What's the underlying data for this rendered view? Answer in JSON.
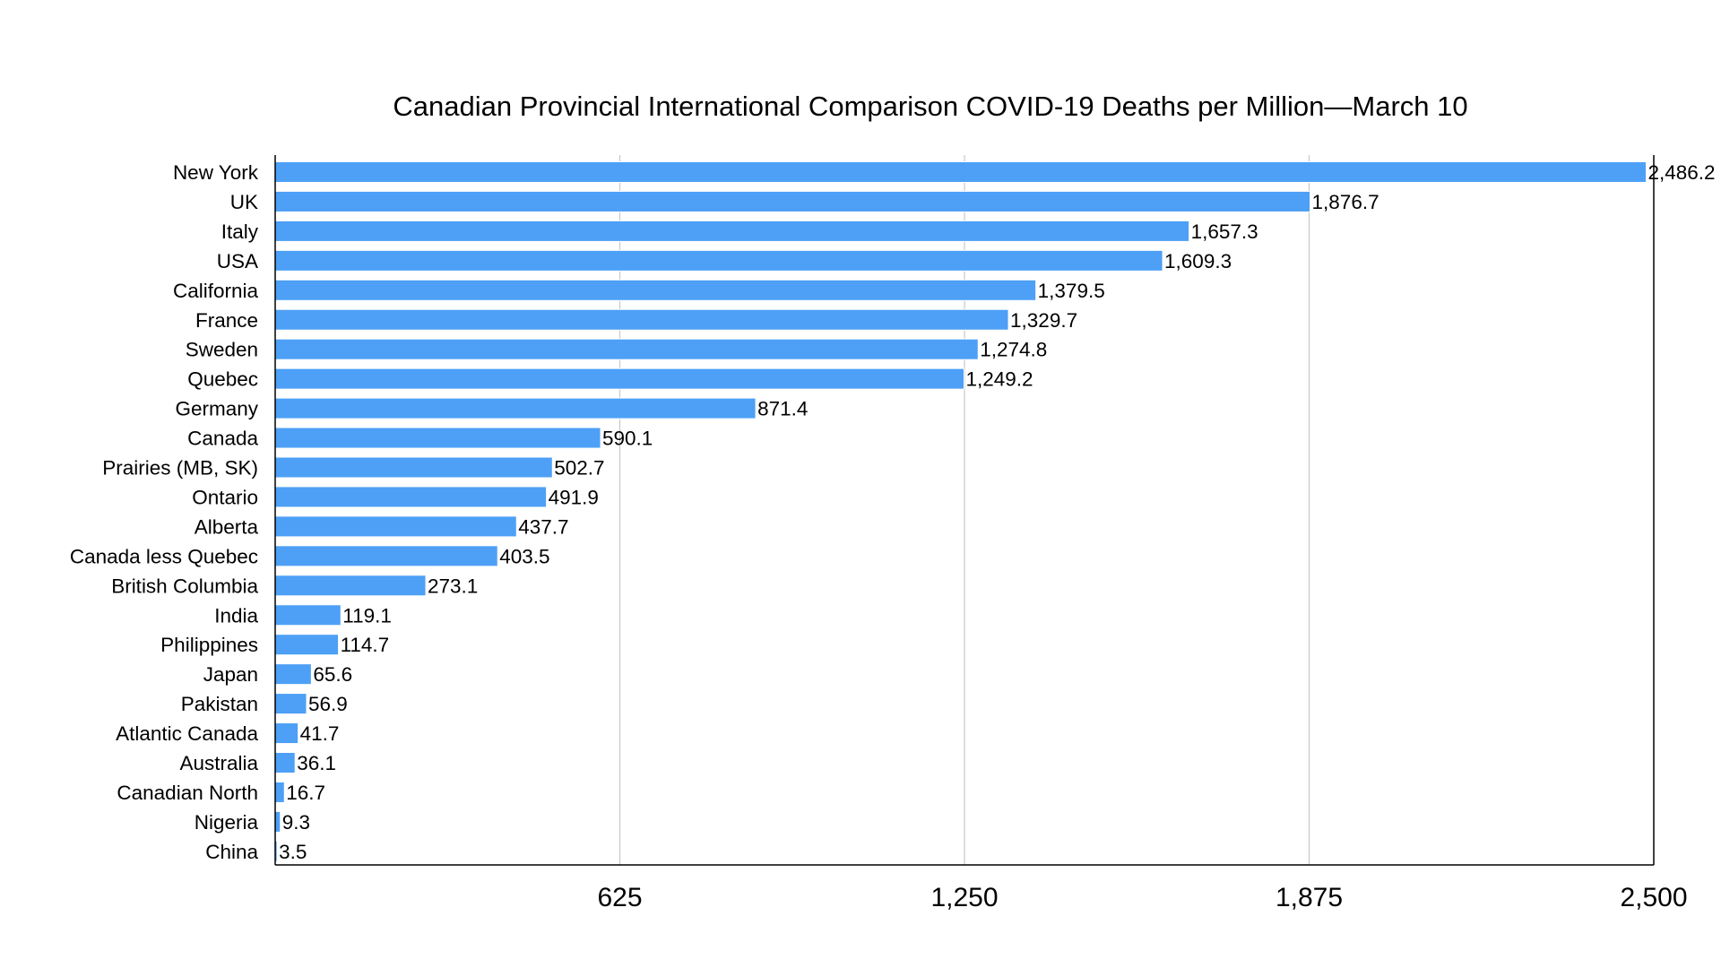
{
  "chart_data": {
    "type": "bar",
    "orientation": "horizontal",
    "title": "Canadian Provincial International Comparison COVID-19 Deaths per Million—March 10",
    "xlabel": "",
    "ylabel": "",
    "xlim": [
      0,
      2500
    ],
    "x_ticks": [
      625,
      1250,
      1875,
      2500
    ],
    "x_tick_labels": [
      "625",
      "1,250",
      "1,875",
      "2,500"
    ],
    "grid": "vertical",
    "bar_color": "#4da0f6",
    "categories": [
      "New York",
      "UK",
      "Italy",
      "USA",
      "California",
      "France",
      "Sweden",
      "Quebec",
      "Germany",
      "Canada",
      "Prairies (MB, SK)",
      "Ontario",
      "Alberta",
      "Canada less Quebec",
      "British Columbia",
      "India",
      "Philippines",
      "Japan",
      "Pakistan",
      "Atlantic Canada",
      "Australia",
      "Canadian North",
      "Nigeria",
      "China"
    ],
    "values": [
      2486.2,
      1876.7,
      1657.3,
      1609.3,
      1379.5,
      1329.7,
      1274.8,
      1249.2,
      871.4,
      590.1,
      502.7,
      491.9,
      437.7,
      403.5,
      273.1,
      119.1,
      114.7,
      65.6,
      56.9,
      41.7,
      36.1,
      16.7,
      9.3,
      3.5
    ],
    "value_labels": [
      "2,486.2",
      "1,876.7",
      "1,657.3",
      "1,609.3",
      "1,379.5",
      "1,329.7",
      "1,274.8",
      "1,249.2",
      "871.4",
      "590.1",
      "502.7",
      "491.9",
      "437.7",
      "403.5",
      "273.1",
      "119.1",
      "114.7",
      "65.6",
      "56.9",
      "41.7",
      "36.1",
      "16.7",
      "9.3",
      "3.5"
    ]
  }
}
